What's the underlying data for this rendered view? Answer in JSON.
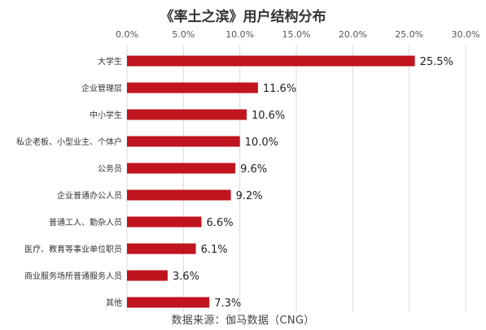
{
  "title": "《率土之滨》用户结构分布",
  "source": "数据来源：伽马数据（CNG）",
  "colors": {
    "bar": "#C0151E",
    "grid": "#D9D9D9",
    "axis_text": "#555555",
    "category_text": "#333333",
    "value_text": "#222222"
  },
  "chart_data": {
    "type": "bar",
    "orientation": "horizontal",
    "title": "《率土之滨》用户结构分布",
    "categories": [
      "大学生",
      "企业管理层",
      "中小学生",
      "私企老板、小型业主、个体户",
      "公务员",
      "企业普通办公人员",
      "普通工人、勤杂人员",
      "医疗、教育等事业单位职员",
      "商业服务场所普通服务人员",
      "其他"
    ],
    "values": [
      25.5,
      11.6,
      10.6,
      10.0,
      9.6,
      9.2,
      6.6,
      6.1,
      3.6,
      7.3
    ],
    "value_labels": [
      "25.5%",
      "11.6%",
      "10.6%",
      "10.0%",
      "9.6%",
      "9.2%",
      "6.6%",
      "6.1%",
      "3.6%",
      "7.3%"
    ],
    "xlim": [
      0,
      30
    ],
    "xticks": [
      0,
      5,
      10,
      15,
      20,
      25,
      30
    ],
    "xtick_labels": [
      "0.0%",
      "5.0%",
      "10.0%",
      "15.0%",
      "20.0%",
      "25.0%",
      "30.0%"
    ],
    "xaxis_position": "top",
    "grid": true,
    "legend": false
  }
}
